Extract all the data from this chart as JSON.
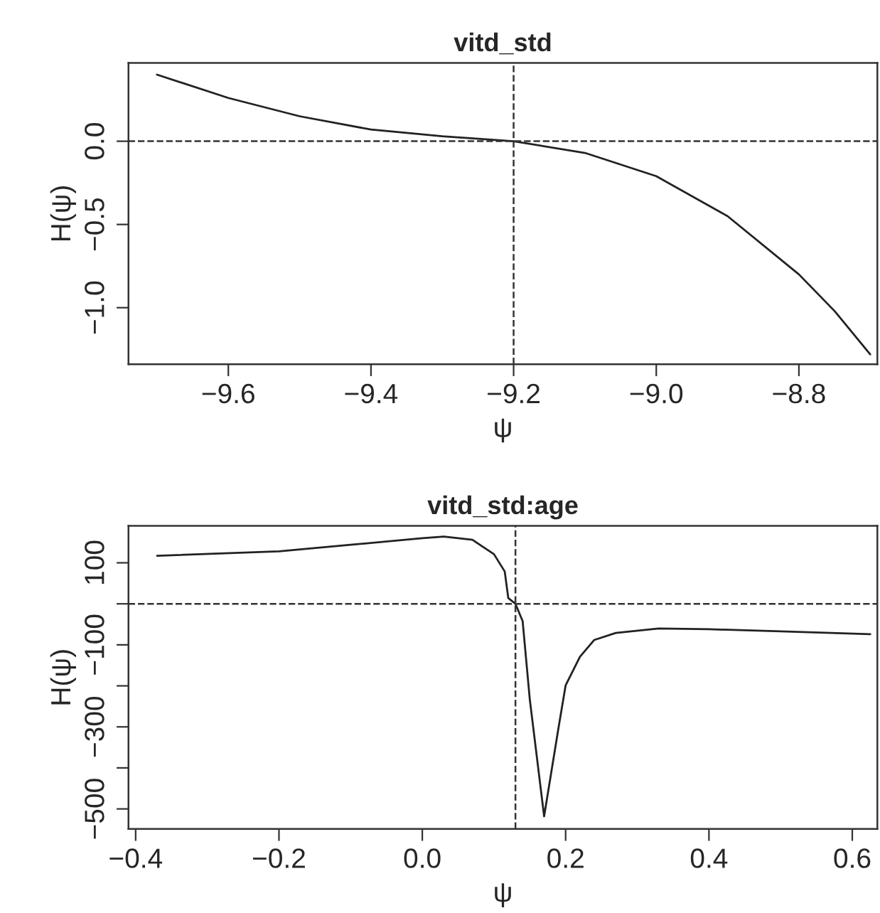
{
  "chart_data": [
    {
      "type": "line",
      "title": "vitd_std",
      "xlabel": "ψ",
      "ylabel": "H(ψ)",
      "x": [
        -9.7,
        -9.6,
        -9.5,
        -9.4,
        -9.3,
        -9.2,
        -9.1,
        -9.0,
        -8.9,
        -8.8,
        -8.75,
        -8.7
      ],
      "series": [
        {
          "color": "#222222",
          "values": [
            0.4,
            0.26,
            0.15,
            0.07,
            0.03,
            0.0,
            -0.07,
            -0.21,
            -0.45,
            -0.8,
            -1.02,
            -1.28
          ]
        }
      ],
      "xlim": [
        -9.74,
        -8.69
      ],
      "xticks": [
        {
          "value": -9.6,
          "label": "−9.6"
        },
        {
          "value": -9.4,
          "label": "−9.4"
        },
        {
          "value": -9.2,
          "label": "−9.2"
        },
        {
          "value": -9.0,
          "label": "−9.0"
        },
        {
          "value": -8.8,
          "label": "−8.8"
        }
      ],
      "ylim": [
        -1.34,
        0.47
      ],
      "yticks": [
        {
          "value": -1.0,
          "label": "−1.0"
        },
        {
          "value": -0.5,
          "label": "−0.5"
        },
        {
          "value": 0.0,
          "label": "0.0"
        }
      ],
      "ref_lines": [
        {
          "axis": "y",
          "value": 0,
          "line_style": "dashed"
        },
        {
          "axis": "x",
          "value": -9.2,
          "line_style": "dashed"
        }
      ],
      "grid": false,
      "legend": false,
      "marker": "none",
      "line_style": "solid"
    },
    {
      "type": "line",
      "title": "vitd_std:age",
      "xlabel": "ψ",
      "ylabel": "H(ψ)",
      "x": [
        -0.37,
        -0.2,
        -0.1,
        0.0,
        0.03,
        0.07,
        0.1,
        0.115,
        0.12,
        0.13,
        0.14,
        0.15,
        0.17,
        0.19,
        0.2,
        0.22,
        0.24,
        0.27,
        0.33,
        0.4,
        0.5,
        0.625
      ],
      "series": [
        {
          "color": "#222222",
          "values": [
            117,
            128,
            144,
            160,
            164,
            156,
            121,
            79,
            14,
            0,
            -42,
            -233,
            -518,
            -303,
            -199,
            -129,
            -88,
            -71,
            -60,
            -62,
            -67,
            -74
          ]
        }
      ],
      "xlim": [
        -0.41,
        0.635
      ],
      "xticks": [
        {
          "value": -0.4,
          "label": "−0.4"
        },
        {
          "value": -0.2,
          "label": "−0.2"
        },
        {
          "value": 0.0,
          "label": "0.0"
        },
        {
          "value": 0.2,
          "label": "0.2"
        },
        {
          "value": 0.4,
          "label": "0.4"
        },
        {
          "value": 0.6,
          "label": "0.6"
        }
      ],
      "ylim": [
        -549,
        190
      ],
      "yticks": [
        {
          "value": -500,
          "label": "−500"
        },
        {
          "value": -400,
          "label": null
        },
        {
          "value": -300,
          "label": "−300"
        },
        {
          "value": -200,
          "label": null
        },
        {
          "value": -100,
          "label": "−100"
        },
        {
          "value": 0,
          "label": null
        },
        {
          "value": 100,
          "label": "100"
        }
      ],
      "ref_lines": [
        {
          "axis": "y",
          "value": 0,
          "line_style": "dashed"
        },
        {
          "axis": "x",
          "value": 0.13,
          "line_style": "dashed"
        }
      ],
      "grid": false,
      "legend": false,
      "marker": "none",
      "line_style": "solid"
    }
  ]
}
